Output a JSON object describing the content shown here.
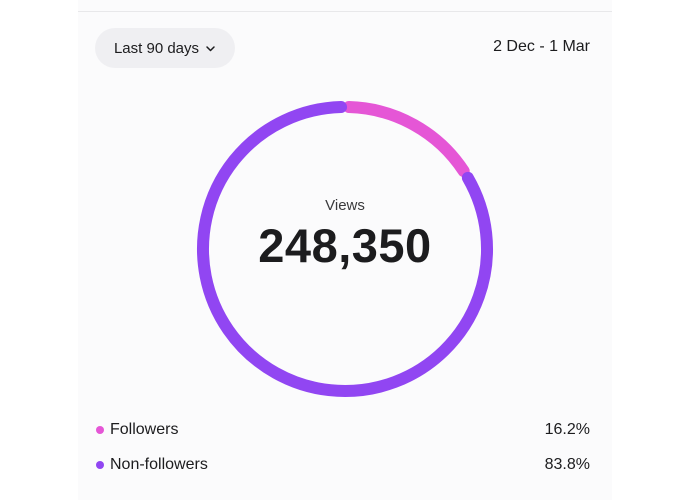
{
  "filter": {
    "range_label": "Last 90 days",
    "date_range": "2 Dec - 1 Mar"
  },
  "summary": {
    "metric_label": "Views",
    "total": "248,350"
  },
  "legend": [
    {
      "label": "Followers",
      "percent": "16.2%",
      "color": "#e556d6"
    },
    {
      "label": "Non-followers",
      "percent": "83.8%",
      "color": "#9146f2"
    }
  ],
  "chart_data": {
    "type": "pie",
    "categories": [
      "Followers",
      "Non-followers"
    ],
    "values": [
      16.2,
      83.8
    ],
    "colors": [
      "#e556d6",
      "#9146f2"
    ],
    "donut": true
  },
  "icons": {
    "dropdown": "chevron-down-icon"
  }
}
